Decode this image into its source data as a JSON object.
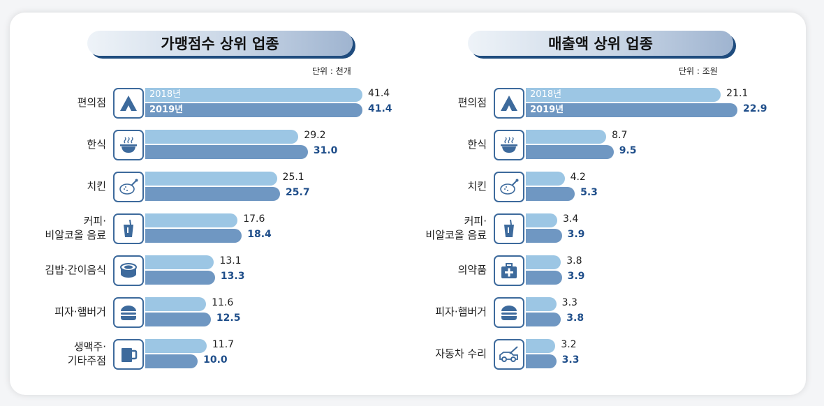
{
  "chart_data": [
    {
      "type": "bar",
      "title": "가맹점수 상위 업종",
      "unit_label": "단위 : 천개",
      "legend": [
        "2018년",
        "2019년"
      ],
      "categories": [
        {
          "label": [
            "편의점"
          ],
          "icon": "convenience-store-icon"
        },
        {
          "label": [
            "한식"
          ],
          "icon": "korean-food-bowl-icon"
        },
        {
          "label": [
            "치킨"
          ],
          "icon": "chicken-icon"
        },
        {
          "label": [
            "커피·",
            "비알코올 음료"
          ],
          "icon": "drink-cup-icon"
        },
        {
          "label": [
            "김밥·간이음식"
          ],
          "icon": "gimbap-icon"
        },
        {
          "label": [
            "피자·햄버거"
          ],
          "icon": "hamburger-icon"
        },
        {
          "label": [
            "생맥주·",
            "기타주점"
          ],
          "icon": "beer-mug-icon"
        }
      ],
      "series": [
        {
          "name": "2018년",
          "values": [
            41.4,
            29.2,
            25.1,
            17.6,
            13.1,
            11.6,
            11.7
          ]
        },
        {
          "name": "2019년",
          "values": [
            41.4,
            31.0,
            25.7,
            18.4,
            13.3,
            12.5,
            10.0
          ]
        }
      ],
      "xlim": [
        0,
        41.4
      ]
    },
    {
      "type": "bar",
      "title": "매출액 상위 업종",
      "unit_label": "단위 : 조원",
      "legend": [
        "2018년",
        "2019년"
      ],
      "categories": [
        {
          "label": [
            "편의점"
          ],
          "icon": "convenience-store-icon"
        },
        {
          "label": [
            "한식"
          ],
          "icon": "korean-food-bowl-icon"
        },
        {
          "label": [
            "치킨"
          ],
          "icon": "chicken-icon"
        },
        {
          "label": [
            "커피·",
            "비알코올 음료"
          ],
          "icon": "drink-cup-icon"
        },
        {
          "label": [
            "의약품"
          ],
          "icon": "medical-kit-icon"
        },
        {
          "label": [
            "피자·햄버거"
          ],
          "icon": "hamburger-icon"
        },
        {
          "label": [
            "자동차 수리"
          ],
          "icon": "car-repair-icon"
        }
      ],
      "series": [
        {
          "name": "2018년",
          "values": [
            21.1,
            8.7,
            4.2,
            3.4,
            3.8,
            3.3,
            3.2
          ]
        },
        {
          "name": "2019년",
          "values": [
            22.9,
            9.5,
            5.3,
            3.9,
            3.9,
            3.8,
            3.3
          ]
        }
      ],
      "xlim": [
        0,
        22.9
      ]
    }
  ],
  "colors": {
    "bar_2018": "#9cc6e4",
    "bar_2019": "#6f97c2",
    "value_2019": "#1f4e8a",
    "icon_stroke": "#3d6a9c"
  }
}
